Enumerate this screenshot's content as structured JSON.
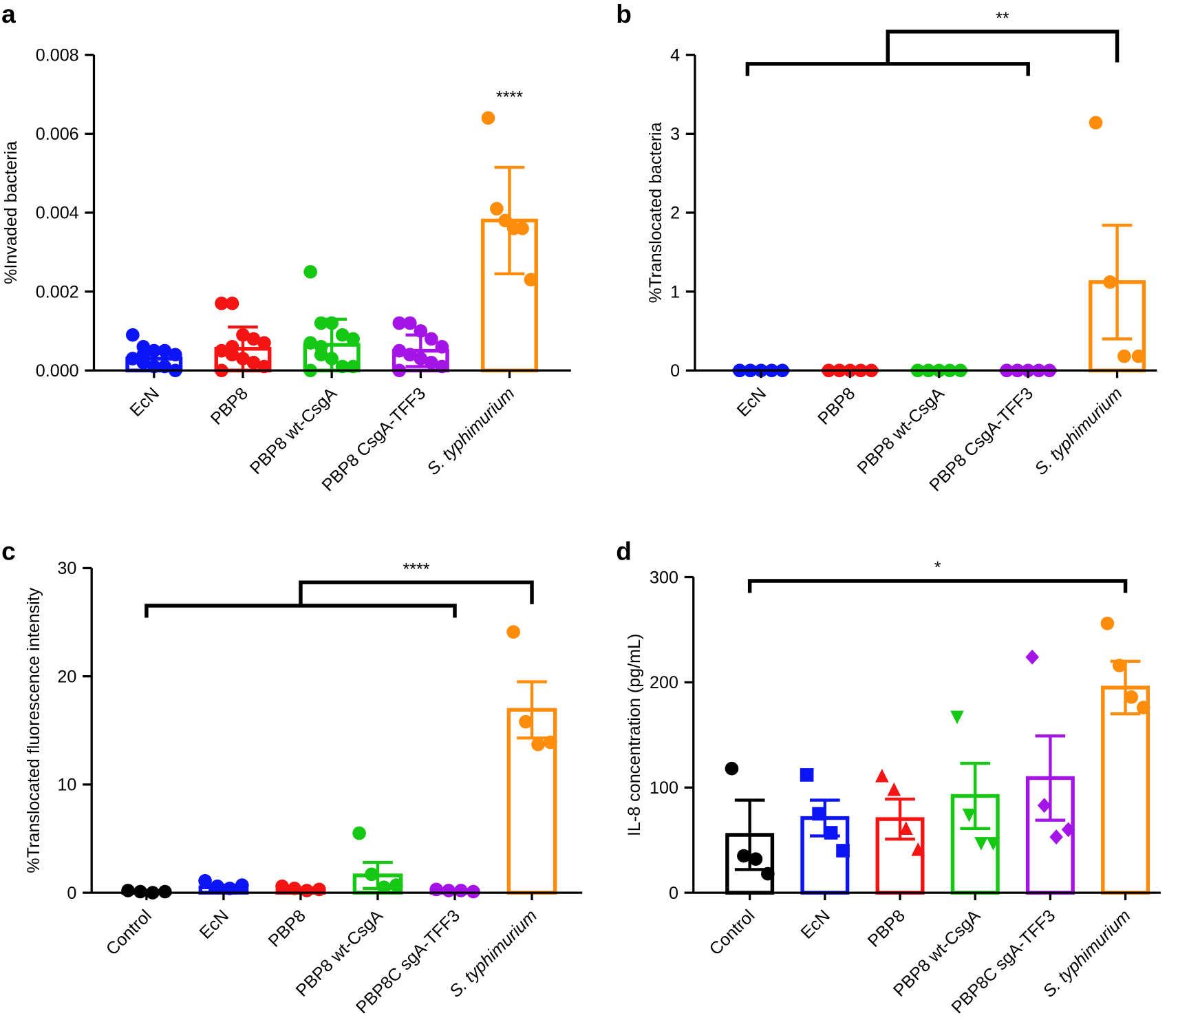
{
  "chart_data": [
    {
      "type": "bar",
      "panel_label": "a",
      "y_label": "%Invaded bacteria",
      "categories": [
        "EcN",
        "PBP8",
        "PBP8 wt-CsgA",
        "PBP8 CsgA-TFF3",
        "S. typhimurium"
      ],
      "colors": [
        "#0a14f5",
        "#f51414",
        "#14c814",
        "#a514e6",
        "#ff8c0a"
      ],
      "values": [
        0.0003,
        0.00055,
        0.00065,
        0.0005,
        0.0038
      ],
      "errors": [
        0.0002,
        0.00055,
        0.00065,
        0.0004,
        0.00135
      ],
      "points": [
        [
          0.0009,
          0.0006,
          0.0005,
          0.0005,
          0.0004,
          0.0003,
          0.0002,
          0.0001,
          0.0001,
          0.0,
          0.0003,
          0.0004
        ],
        [
          0.0017,
          0.0017,
          0.0009,
          0.0008,
          0.0007,
          0.0005,
          0.0004,
          0.0003,
          0.0002,
          0.0001,
          0.0,
          0.0006
        ],
        [
          0.0025,
          0.0012,
          0.0012,
          0.0009,
          0.0008,
          0.0007,
          0.0004,
          0.0003,
          0.0001,
          0.0001,
          0.0,
          0.0006
        ],
        [
          0.0012,
          0.0012,
          0.001,
          0.0008,
          0.0006,
          0.0005,
          0.0004,
          0.0003,
          0.0002,
          0.0001,
          0.0,
          0.0004
        ],
        [
          0.0064,
          0.0041,
          0.0038,
          0.0036,
          0.0036,
          0.0023
        ]
      ],
      "ylim": [
        0,
        0.008
      ],
      "yticks": [
        {
          "value": 0,
          "label": "0.000"
        },
        {
          "value": 0.002,
          "label": "0.002"
        },
        {
          "value": 0.004,
          "label": "0.004"
        },
        {
          "value": 0.006,
          "label": "0.006"
        },
        {
          "value": 0.008,
          "label": "0.008"
        }
      ],
      "annotation": "****"
    },
    {
      "type": "bar",
      "panel_label": "b",
      "y_label": "%Translocated bacteria",
      "categories": [
        "EcN",
        "PBP8",
        "PBP8 wt-CsgA",
        "PBP8 CsgA-TFF3",
        "S. typhimurium"
      ],
      "colors": [
        "#0a14f5",
        "#f51414",
        "#14c814",
        "#a514e6",
        "#ff8c0a"
      ],
      "values": [
        0,
        0,
        0,
        0,
        1.12
      ],
      "errors": [
        0,
        0,
        0,
        0,
        0.72
      ],
      "points": [
        [
          0,
          0,
          0,
          0,
          0,
          0,
          0
        ],
        [
          0,
          0,
          0,
          0,
          0,
          0,
          0
        ],
        [
          0,
          0,
          0,
          0,
          0,
          0,
          0
        ],
        [
          0,
          0,
          0,
          0,
          0,
          0,
          0
        ],
        [
          3.14,
          1.12,
          0.18,
          0.18
        ]
      ],
      "ylim": [
        0,
        4
      ],
      "yticks": [
        0,
        1,
        2,
        3,
        4
      ],
      "annotation": "**"
    },
    {
      "type": "bar",
      "panel_label": "c",
      "y_label": "%Translocated fluorescence intensity",
      "categories": [
        "Control",
        "EcN",
        "PBP8",
        "PBP8 wt-CsgA",
        "PBP8C sgA-TFF3",
        "S. typhimurium"
      ],
      "colors": [
        "#000000",
        "#0a14f5",
        "#f51414",
        "#14c814",
        "#a514e6",
        "#ff8c0a"
      ],
      "values": [
        0.1,
        0.5,
        0.3,
        1.6,
        0.2,
        16.9
      ],
      "errors": [
        0.1,
        0.2,
        0.15,
        1.2,
        0.1,
        2.6
      ],
      "points": [
        [
          0.2,
          0.1,
          0.0,
          0.1
        ],
        [
          1.1,
          0.6,
          0.4,
          0.7
        ],
        [
          0.6,
          0.4,
          0.2,
          0.3
        ],
        [
          5.5,
          1.7,
          0.5,
          0.7
        ],
        [
          0.3,
          0.2,
          0.2,
          0.1
        ],
        [
          24.1,
          15.8,
          13.7,
          13.9
        ]
      ],
      "ylim": [
        0,
        30
      ],
      "yticks": [
        0,
        10,
        20,
        30
      ],
      "annotation": "****"
    },
    {
      "type": "bar",
      "panel_label": "d",
      "y_label": "IL-8 concentration (pg/mL)",
      "categories": [
        "Control",
        "EcN",
        "PBP8",
        "PBP8 wt-CsgA",
        "PBP8C sgA-TFF3",
        "S. typhimurium"
      ],
      "colors": [
        "#000000",
        "#0a14f5",
        "#f51414",
        "#14c814",
        "#a514e6",
        "#ff8c0a"
      ],
      "markers": [
        "circle",
        "square",
        "triangle",
        "triangle-down",
        "diamond",
        "circle"
      ],
      "values": [
        55,
        71,
        70,
        92,
        109,
        195
      ],
      "errors": [
        33,
        17,
        19,
        31,
        40,
        25
      ],
      "points": [
        [
          118,
          35,
          32,
          18
        ],
        [
          112,
          75,
          57,
          40
        ],
        [
          110,
          97,
          60,
          40
        ],
        [
          168,
          75,
          48,
          48
        ],
        [
          224,
          83,
          53,
          60
        ],
        [
          256,
          216,
          186,
          176
        ]
      ],
      "ylim": [
        0,
        300
      ],
      "yticks": [
        0,
        100,
        200,
        300
      ],
      "annotation": "*"
    }
  ]
}
